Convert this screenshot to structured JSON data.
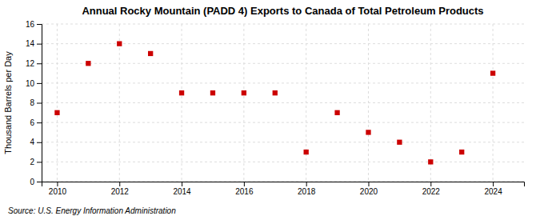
{
  "chart_data": {
    "type": "scatter",
    "title": "Annual Rocky Mountain (PADD 4) Exports to Canada of Total Petroleum Products",
    "ylabel": "Thousand Barrels per Day",
    "source": "Source: U.S. Energy Information Administration",
    "x": [
      2010,
      2011,
      2012,
      2013,
      2014,
      2015,
      2016,
      2017,
      2018,
      2019,
      2020,
      2021,
      2022,
      2023,
      2024
    ],
    "values": [
      7,
      12,
      14,
      13,
      9,
      9,
      9,
      9,
      3,
      7,
      5,
      4,
      2,
      3,
      11
    ],
    "color": "#cc0000",
    "marker": "square",
    "xlim": [
      2009.5,
      2025.0
    ],
    "ylim": [
      0,
      16
    ],
    "xticks": [
      2010,
      2012,
      2014,
      2016,
      2018,
      2020,
      2022,
      2024
    ],
    "yticks": [
      0,
      2,
      4,
      6,
      8,
      10,
      12,
      14,
      16
    ],
    "grid": true
  }
}
